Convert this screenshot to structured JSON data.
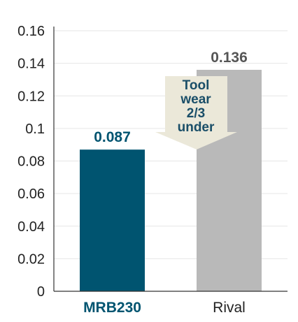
{
  "chart_data": {
    "type": "bar",
    "title": "",
    "xlabel": "",
    "ylabel": "",
    "categories": [
      "MRB230",
      "Rival"
    ],
    "values": [
      0.087,
      0.136
    ],
    "value_labels": [
      "0.087",
      "0.136"
    ],
    "ylim": [
      0,
      0.16
    ],
    "yticks": [
      0,
      0.02,
      0.04,
      0.06,
      0.08,
      0.1,
      0.12,
      0.14,
      0.16
    ],
    "ytick_labels": [
      "0",
      "0.02",
      "0.04",
      "0.06",
      "0.08",
      "0.1",
      "0.12",
      "0.14",
      "0.16"
    ],
    "grid": true,
    "colors": {
      "bars": [
        "#005470",
        "#b9b9b9"
      ],
      "value_labels": [
        "#005470",
        "#555555"
      ],
      "category_labels": [
        "#005470",
        "#222222"
      ],
      "grid": "#e6e6e6",
      "axis": "#333333",
      "callout_fill": "#ebe8d9"
    },
    "annotation": {
      "lines": [
        "Tool",
        "wear",
        "2/3",
        "under"
      ]
    }
  }
}
